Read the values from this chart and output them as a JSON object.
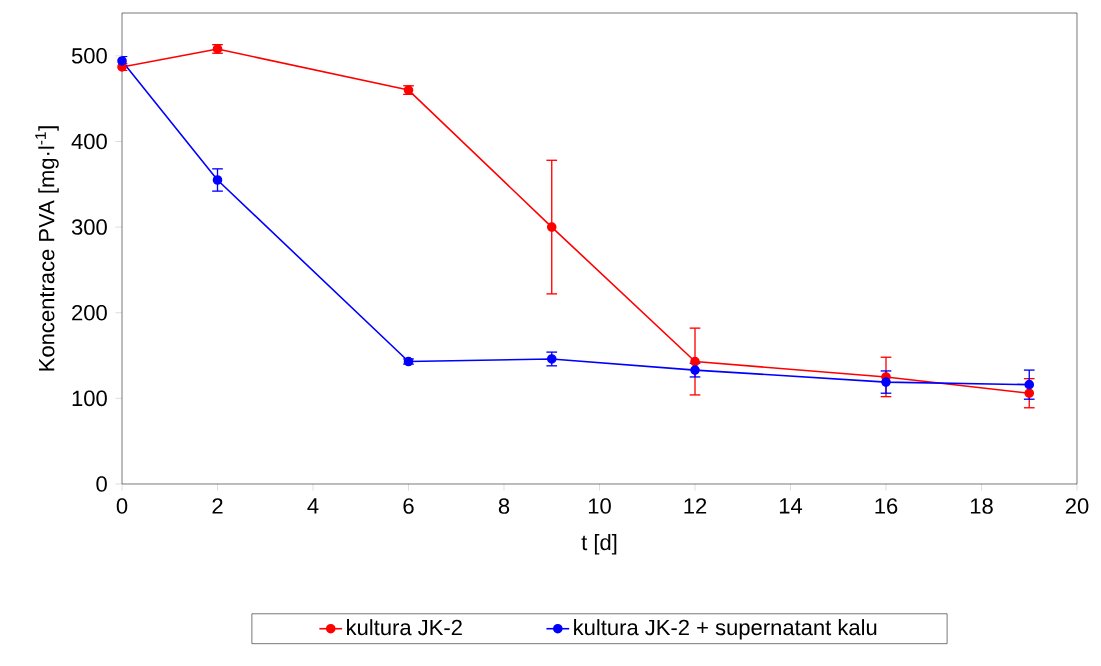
{
  "chart_data": {
    "type": "line",
    "xlabel": "t [d]",
    "ylabel": "Koncentrace PVA [mg·l$^{-1}$]",
    "x": [
      0,
      2,
      6,
      9,
      12,
      16,
      19
    ],
    "series": [
      {
        "name": "kultura JK-2",
        "color": "#ff0000",
        "values": [
          487,
          508,
          460,
          300,
          143,
          125,
          106
        ],
        "errors": [
          4,
          5,
          5,
          78,
          39,
          23,
          17
        ]
      },
      {
        "name": "kultura JK-2 + supernatant kalu",
        "color": "#0000ff",
        "values": [
          494,
          355,
          143,
          146,
          133,
          119,
          116
        ],
        "errors": [
          5,
          13,
          3,
          8,
          8,
          13,
          17
        ]
      }
    ],
    "xlim": [
      0,
      20
    ],
    "xticks": [
      0,
      2,
      4,
      6,
      8,
      10,
      12,
      14,
      16,
      18,
      20
    ],
    "ylim": [
      0,
      550
    ],
    "yticks": [
      0,
      100,
      200,
      300,
      400,
      500
    ],
    "legend": "bottom",
    "marker": "circle",
    "line_style": "solid",
    "grid": false
  }
}
